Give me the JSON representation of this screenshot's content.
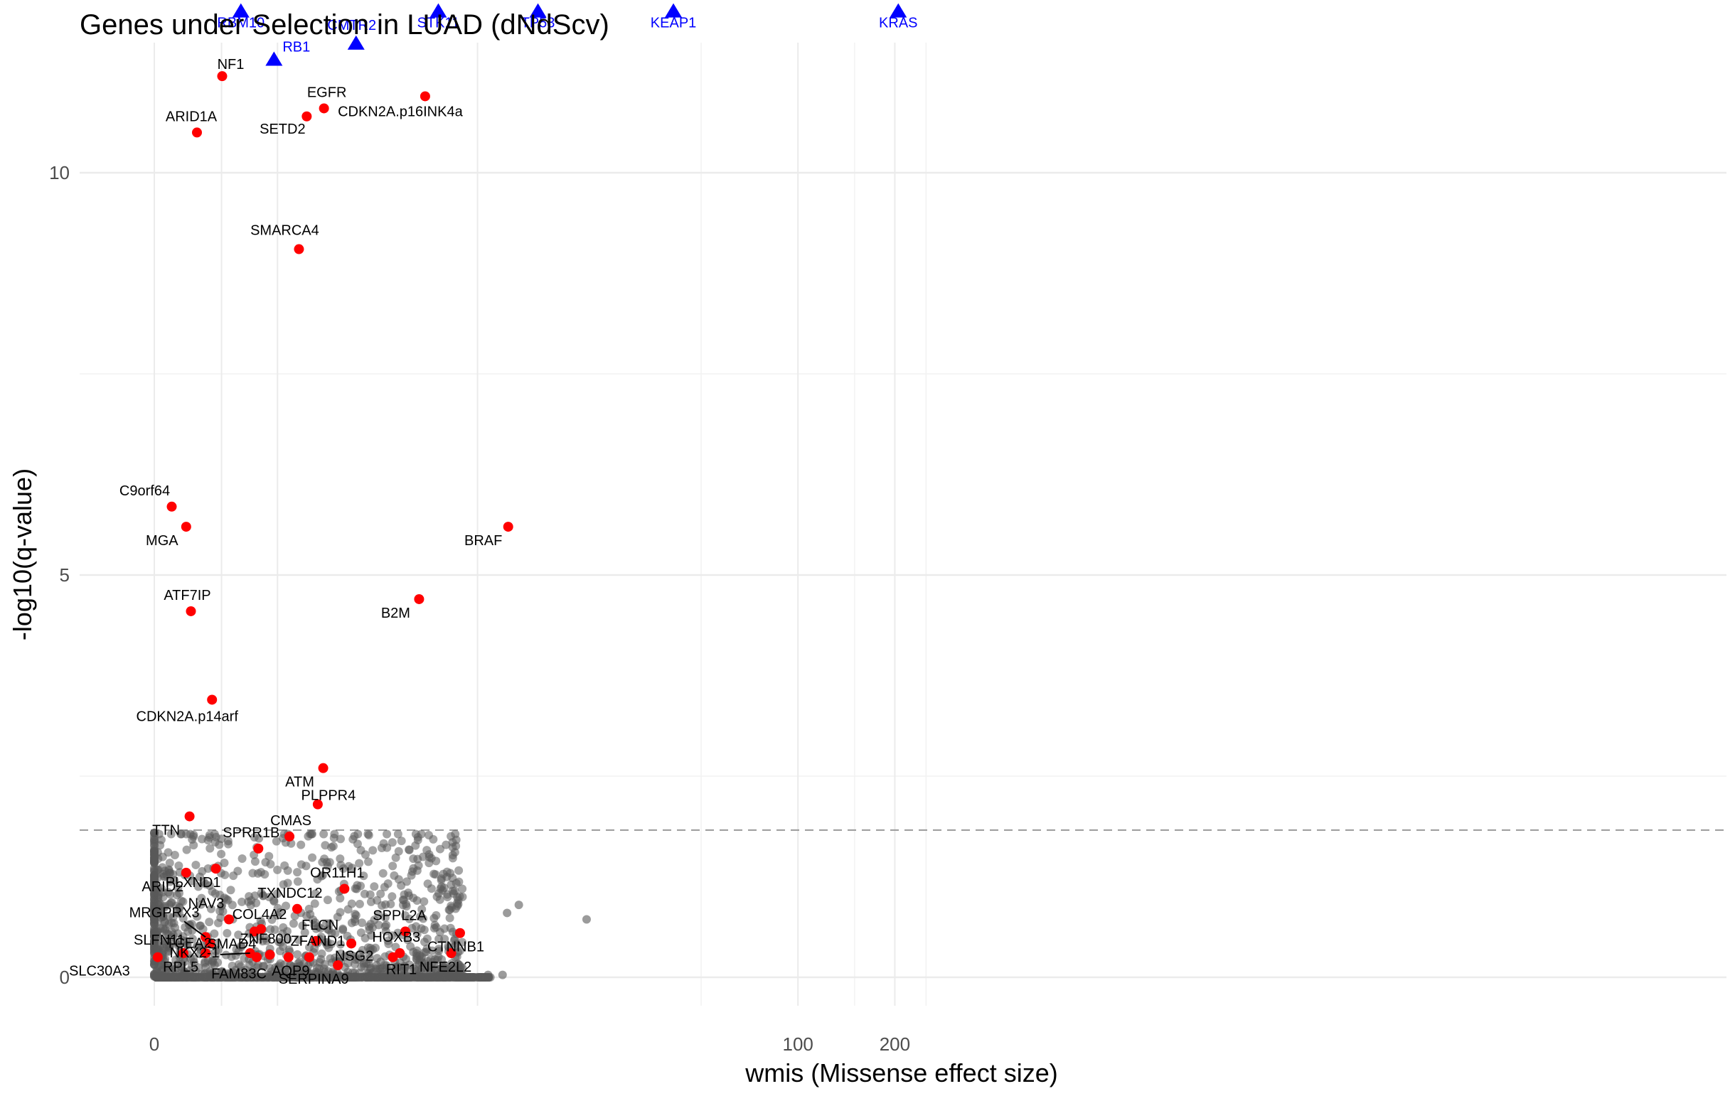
{
  "chart_data": {
    "type": "scatter",
    "title": "Genes under Selection in LUAD (dNdScv)",
    "xlabel": "wmis (Missense effect size)",
    "ylabel": "-log10(q-value)",
    "x_scale": "pseudo-log",
    "x_ticks": [
      0,
      100,
      200
    ],
    "y_ticks": [
      0,
      5,
      10
    ],
    "ylim": [
      0,
      12
    ],
    "significance_threshold": 1.83,
    "grid": true,
    "colors": {
      "significant": "#ff0000",
      "top": "#0000ff",
      "background": "#595959",
      "threshold": "#999999"
    },
    "top_genes": [
      {
        "gene": "RBM10",
        "x": 1.32,
        "y": 12
      },
      {
        "gene": "RB1",
        "x": 1.93,
        "y": 11.4
      },
      {
        "gene": "CMTR2",
        "x": 4.0,
        "y": 11.6
      },
      {
        "gene": "STK11",
        "x": 7.5,
        "y": 12
      },
      {
        "gene": "TP53",
        "x": 15.5,
        "y": 12
      },
      {
        "gene": "KEAP1",
        "x": 41,
        "y": 12
      },
      {
        "gene": "KRAS",
        "x": 205,
        "y": 12
      }
    ],
    "significant_genes": [
      {
        "gene": "NF1",
        "x": 1.01,
        "y": 11.2
      },
      {
        "gene": "ARID1A",
        "x": 0.62,
        "y": 10.5
      },
      {
        "gene": "SETD2",
        "x": 2.64,
        "y": 10.7
      },
      {
        "gene": "EGFR",
        "x": 3.07,
        "y": 10.8
      },
      {
        "gene": "CDKN2A.p16INK4a",
        "x": 6.8,
        "y": 10.95
      },
      {
        "gene": "SMARCA4",
        "x": 2.46,
        "y": 9.05
      },
      {
        "gene": "C9orf64",
        "x": 0.25,
        "y": 5.85
      },
      {
        "gene": "MGA",
        "x": 0.46,
        "y": 5.6
      },
      {
        "gene": "BRAF",
        "x": 12.5,
        "y": 5.6
      },
      {
        "gene": "ATF7IP",
        "x": 0.53,
        "y": 4.55
      },
      {
        "gene": "B2M",
        "x": 6.5,
        "y": 4.7
      },
      {
        "gene": "CDKN2A.p14arf",
        "x": 0.85,
        "y": 3.45
      },
      {
        "gene": "ATM",
        "x": 3.05,
        "y": 2.6
      },
      {
        "gene": "TTN",
        "x": 0.51,
        "y": 2.0
      },
      {
        "gene": "PLPPR4",
        "x": 2.91,
        "y": 2.15
      },
      {
        "gene": "CMAS",
        "x": 2.25,
        "y": 1.75
      },
      {
        "gene": "SPRR1B",
        "x": 1.63,
        "y": 1.6
      },
      {
        "gene": "ARID2",
        "x": 0.46,
        "y": 1.3
      },
      {
        "gene": "PLXND1",
        "x": 0.91,
        "y": 1.35
      },
      {
        "gene": "OR11H1",
        "x": 3.64,
        "y": 1.1
      },
      {
        "gene": "TXNDC12",
        "x": 2.42,
        "y": 0.85
      },
      {
        "gene": "NAV3",
        "x": 1.12,
        "y": 0.72
      },
      {
        "gene": "COL4A2",
        "x": 1.68,
        "y": 0.6
      },
      {
        "gene": "SMAD4",
        "x": 1.56,
        "y": 0.57
      },
      {
        "gene": "MRGPRX3",
        "x": 0.75,
        "y": 0.5
      },
      {
        "gene": "TCEA2",
        "x": 0.82,
        "y": 0.42
      },
      {
        "gene": "SLFN11",
        "x": 0.42,
        "y": 0.3
      },
      {
        "gene": "RPL5",
        "x": 0.75,
        "y": 0.3
      },
      {
        "gene": "NKX2-1",
        "x": 1.48,
        "y": 0.3
      },
      {
        "gene": "FAM83C",
        "x": 1.6,
        "y": 0.25
      },
      {
        "gene": "ZNF800",
        "x": 1.85,
        "y": 0.28
      },
      {
        "gene": "AQP9",
        "x": 2.23,
        "y": 0.25
      },
      {
        "gene": "FLCN",
        "x": 2.86,
        "y": 0.45
      },
      {
        "gene": "ZFAND1",
        "x": 2.7,
        "y": 0.25
      },
      {
        "gene": "SERPINA9",
        "x": 3.45,
        "y": 0.15
      },
      {
        "gene": "NSG2",
        "x": 3.85,
        "y": 0.42
      },
      {
        "gene": "HOXB3",
        "x": 5.62,
        "y": 0.3
      },
      {
        "gene": "RIT1",
        "x": 5.33,
        "y": 0.25
      },
      {
        "gene": "SPPL2A",
        "x": 5.86,
        "y": 0.57
      },
      {
        "gene": "CTNNB1",
        "x": 8.8,
        "y": 0.55
      },
      {
        "gene": "NFE2L2",
        "x": 8.25,
        "y": 0.3
      },
      {
        "gene": "SLC30A3",
        "x": 0.05,
        "y": 0.25
      }
    ]
  }
}
